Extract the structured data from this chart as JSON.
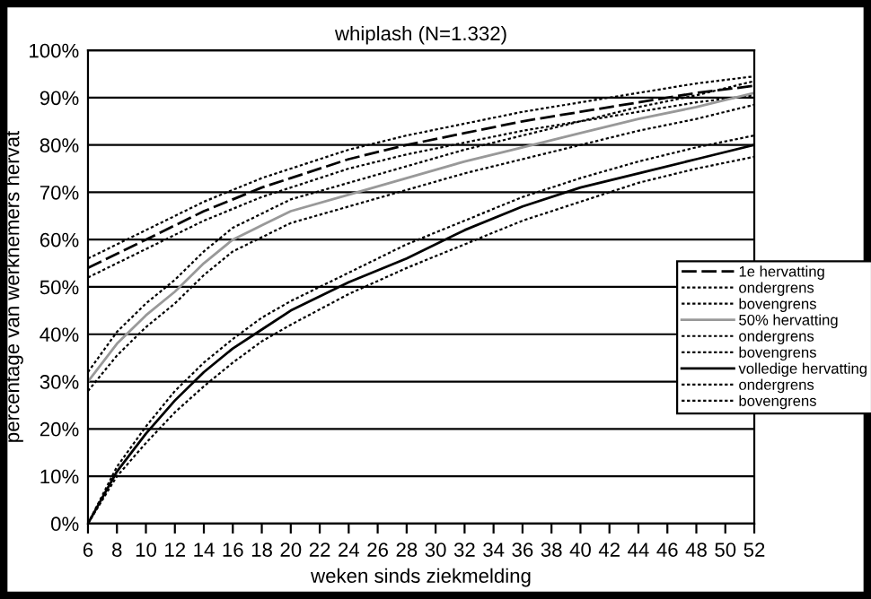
{
  "chart_data": {
    "type": "line",
    "title": "whiplash (N=1.332)",
    "xlabel": "weken sinds ziekmelding",
    "ylabel": "percentage van werknemers hervat",
    "x": [
      6,
      8,
      10,
      12,
      14,
      16,
      18,
      20,
      24,
      28,
      32,
      36,
      40,
      44,
      48,
      52
    ],
    "series": [
      {
        "name": "1e hervatting",
        "color": "#000000",
        "line_style": "dashed",
        "values": [
          54,
          57,
          60,
          63,
          66,
          68.5,
          71,
          73,
          77,
          80,
          82.5,
          85,
          87,
          89,
          91,
          92.5
        ]
      },
      {
        "name": "ondergrens",
        "color": "#000000",
        "line_style": "dotted",
        "values": [
          52,
          55,
          58,
          61,
          64,
          66.5,
          69,
          71,
          75,
          78,
          80.5,
          83,
          85,
          87,
          89,
          90.5
        ]
      },
      {
        "name": "bovengrens",
        "color": "#000000",
        "line_style": "dotted",
        "values": [
          56,
          59,
          62,
          65,
          68,
          70.5,
          73,
          75,
          79,
          82,
          84.5,
          87,
          89,
          91,
          93,
          94.5
        ]
      },
      {
        "name": "50% hervatting",
        "color": "#999999",
        "line_style": "solid",
        "values": [
          30,
          38,
          44,
          49,
          55,
          60,
          63,
          66,
          69.5,
          73,
          76.5,
          79.5,
          82.5,
          85.5,
          88,
          91
        ]
      },
      {
        "name": "ondergrens",
        "color": "#000000",
        "line_style": "dotted",
        "values": [
          28,
          35.5,
          41.5,
          46.5,
          52.5,
          57.5,
          60.5,
          63.5,
          67,
          70.5,
          74,
          77,
          80,
          83,
          85.5,
          88.5
        ]
      },
      {
        "name": "bovengrens",
        "color": "#000000",
        "line_style": "dotted",
        "values": [
          32,
          40.5,
          46.5,
          51.5,
          57.5,
          62.5,
          65.5,
          68.5,
          72,
          75.5,
          79,
          82,
          85,
          88,
          90.5,
          93.5
        ]
      },
      {
        "name": "volledige hervatting",
        "color": "#000000",
        "line_style": "solid",
        "values": [
          0,
          11,
          19,
          26,
          32,
          37,
          41,
          45,
          51,
          56,
          62,
          67,
          71,
          74,
          77,
          80
        ]
      },
      {
        "name": "ondergrens",
        "color": "#000000",
        "line_style": "dotted",
        "values": [
          0,
          10,
          17,
          23.5,
          29,
          34,
          38.5,
          42,
          48.5,
          54,
          59,
          64,
          68,
          72,
          75,
          77.5
        ]
      },
      {
        "name": "bovengrens",
        "color": "#000000",
        "line_style": "dotted",
        "values": [
          0,
          12,
          20.5,
          28,
          34,
          39,
          43.5,
          47,
          53,
          59,
          64,
          69,
          73,
          76.5,
          79.5,
          82
        ]
      }
    ],
    "xlim": [
      6,
      52
    ],
    "xticks": [
      6,
      8,
      10,
      12,
      14,
      16,
      18,
      20,
      22,
      24,
      26,
      28,
      30,
      32,
      34,
      36,
      38,
      40,
      42,
      44,
      46,
      48,
      50,
      52
    ],
    "ylim": [
      0,
      100
    ],
    "yticks": [
      {
        "value": 0,
        "label": "0%"
      },
      {
        "value": 10,
        "label": "10%"
      },
      {
        "value": 20,
        "label": "20%"
      },
      {
        "value": 30,
        "label": "30%"
      },
      {
        "value": 40,
        "label": "40%"
      },
      {
        "value": 50,
        "label": "50%"
      },
      {
        "value": 60,
        "label": "60%"
      },
      {
        "value": 70,
        "label": "70%"
      },
      {
        "value": 80,
        "label": "80%"
      },
      {
        "value": 90,
        "label": "90%"
      },
      {
        "value": 100,
        "label": "100%"
      }
    ],
    "grid": "y",
    "legend": "right",
    "marker": "none"
  }
}
